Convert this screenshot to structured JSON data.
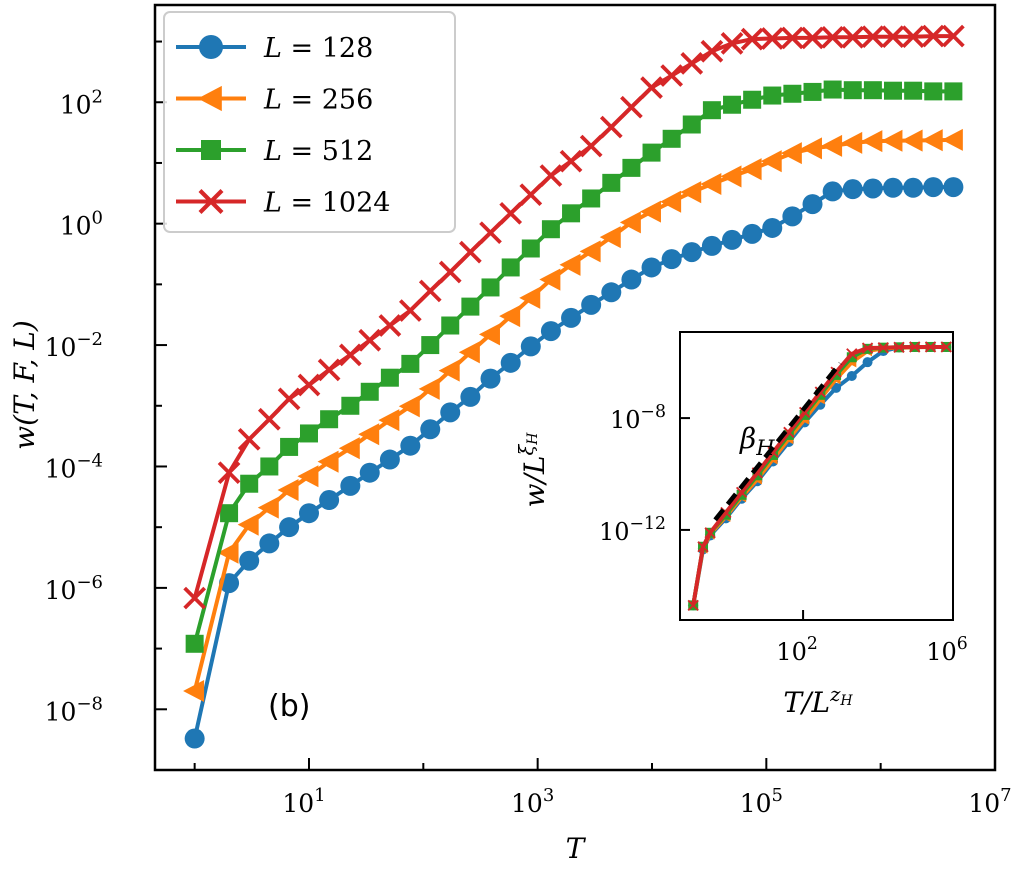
{
  "chart_data": [
    {
      "type": "line",
      "panel_label": "(b)",
      "xlabel": "T",
      "ylabel": "w(T, F, L)",
      "xscale": "log",
      "yscale": "log",
      "xlim": [
        0.45,
        10000000
      ],
      "ylim": [
        1e-09,
        4000
      ],
      "xtick_labels": [
        "10^1",
        "10^3",
        "10^5",
        "10^7"
      ],
      "ytick_labels": [
        "10^2",
        "10^0",
        "10^−2",
        "10^−4",
        "10^−6",
        "10^−8"
      ],
      "grid": false,
      "legend_position": "top-left",
      "x": [
        1,
        2,
        3,
        4.5,
        6.7,
        10,
        15,
        23,
        34,
        51,
        77,
        115,
        172,
        258,
        387,
        581,
        871,
        1306,
        1959,
        2938,
        4406,
        6607,
        9908,
        14860,
        22280,
        33420,
        50120,
        75160,
        112700,
        169000,
        253500,
        380200,
        570200,
        855100,
        1282000,
        1923000,
        2884000,
        4325000
      ],
      "series": [
        {
          "name": "L = 128",
          "color": "#1f77b4",
          "marker": "circle",
          "values": [
            3.3e-09,
            1.2e-06,
            2.8e-06,
            5.4e-06,
            1e-05,
            1.7e-05,
            2.8e-05,
            4.8e-05,
            7.9e-05,
            0.00013,
            0.00022,
            0.00041,
            0.00078,
            0.0014,
            0.0028,
            0.0051,
            0.0095,
            0.017,
            0.028,
            0.046,
            0.074,
            0.12,
            0.19,
            0.26,
            0.34,
            0.43,
            0.54,
            0.68,
            0.85,
            1.32,
            2.1,
            3.4,
            3.7,
            3.8,
            3.9,
            3.9,
            4.0,
            4.0
          ]
        },
        {
          "name": "L = 256",
          "color": "#ff7f0e",
          "marker": "triangle-left",
          "values": [
            2e-08,
            3.8e-06,
            1.1e-05,
            2.1e-05,
            4.1e-05,
            6.9e-05,
            0.00012,
            0.0002,
            0.00034,
            0.00058,
            0.00098,
            0.0019,
            0.0038,
            0.0076,
            0.015,
            0.03,
            0.06,
            0.12,
            0.21,
            0.35,
            0.6,
            1.05,
            1.58,
            2.3,
            3.3,
            4.5,
            6.0,
            7.9,
            10.7,
            14.5,
            17.4,
            19.1,
            21.4,
            22.9,
            23.2,
            23.4,
            23.7,
            24.0
          ]
        },
        {
          "name": "L = 512",
          "color": "#2ca02c",
          "marker": "square",
          "values": [
            1.2e-07,
            1.7e-05,
            5.2e-05,
            0.0001,
            0.00021,
            0.00035,
            0.0006,
            0.001,
            0.0017,
            0.0029,
            0.0049,
            0.01,
            0.021,
            0.043,
            0.089,
            0.19,
            0.39,
            0.81,
            1.48,
            2.6,
            4.7,
            8.3,
            14.8,
            25,
            43,
            74,
            91,
            110,
            129,
            138,
            148,
            162,
            158,
            158,
            155,
            155,
            151,
            151
          ]
        },
        {
          "name": "L = 1024",
          "color": "#d62728",
          "marker": "x",
          "values": [
            6.8e-07,
            7.9e-05,
            0.00028,
            0.0006,
            0.0013,
            0.0022,
            0.0039,
            0.0069,
            0.012,
            0.021,
            0.037,
            0.078,
            0.16,
            0.34,
            0.71,
            1.48,
            3.0,
            6.2,
            10.7,
            19,
            39,
            83,
            174,
            275,
            437,
            692,
            933,
            1096,
            1122,
            1148,
            1148,
            1175,
            1175,
            1202,
            1202,
            1202,
            1230,
            1230
          ]
        }
      ]
    },
    {
      "type": "line",
      "inset": true,
      "xlabel": "T/L^zH",
      "ylabel": "w/L^ξH",
      "xscale": "log",
      "yscale": "log",
      "xlim": [
        0.052,
        1000000
      ],
      "ylim": [
        6e-16,
        1.2e-05
      ],
      "xtick_labels": [
        "10^2",
        "10^6"
      ],
      "ytick_labels": [
        "10^−8",
        "10^−12"
      ],
      "annotation": "βH",
      "reference_line": {
        "style": "dashed",
        "color": "#000000",
        "points": [
          [
            0.45,
            2.3e-12
          ],
          [
            977,
            9.1e-07
          ]
        ]
      },
      "x": [
        0.117,
        0.214,
        0.331,
        0.871,
        2.29,
        6.03,
        15.8,
        41.7,
        110,
        288,
        759,
        1995,
        5248,
        13800,
        36310,
        95500,
        251200,
        660700
      ],
      "series": [
        {
          "name": "L = 128",
          "color": "#1f77b4",
          "marker": "circle",
          "values": [
            2e-15,
            2e-13,
            6.3e-13,
            2.6e-12,
            1.3e-11,
            5.5e-11,
            2.8e-10,
            1.4e-09,
            7e-09,
            3e-08,
            1.2e-07,
            3.2e-07,
            1e-06,
            2.5e-06,
            3.4e-06,
            3.5e-06,
            3.5e-06,
            3.5e-06
          ]
        },
        {
          "name": "L = 256",
          "color": "#ff7f0e",
          "marker": "triangle-left",
          "values": [
            2e-15,
            2.2e-13,
            7e-13,
            3e-12,
            1.5e-11,
            6.5e-11,
            3.4e-10,
            1.8e-09,
            9e-09,
            4.8e-08,
            2.5e-07,
            1e-06,
            2.5e-06,
            3.1e-06,
            3.3e-06,
            3.4e-06,
            3.5e-06,
            3.5e-06
          ]
        },
        {
          "name": "L = 512",
          "color": "#2ca02c",
          "marker": "square",
          "values": [
            2e-15,
            2.5e-13,
            7.9e-13,
            3.5e-12,
            1.8e-11,
            9e-11,
            4.8e-10,
            2.5e-09,
            1.3e-08,
            6.8e-08,
            3.5e-07,
            1.5e-06,
            3e-06,
            3.3e-06,
            3.4e-06,
            3.5e-06,
            3.5e-06,
            3.5e-06
          ]
        },
        {
          "name": "L = 1024",
          "color": "#d62728",
          "marker": "x",
          "values": [
            2e-15,
            2.5e-13,
            7.9e-13,
            4.2e-12,
            2.2e-11,
            1.1e-10,
            6e-10,
            3.1e-09,
            1.6e-08,
            8.5e-08,
            4.4e-07,
            2e-06,
            3.2e-06,
            3.3e-06,
            3.4e-06,
            3.5e-06,
            3.5e-06,
            3.5e-06
          ]
        }
      ]
    }
  ]
}
